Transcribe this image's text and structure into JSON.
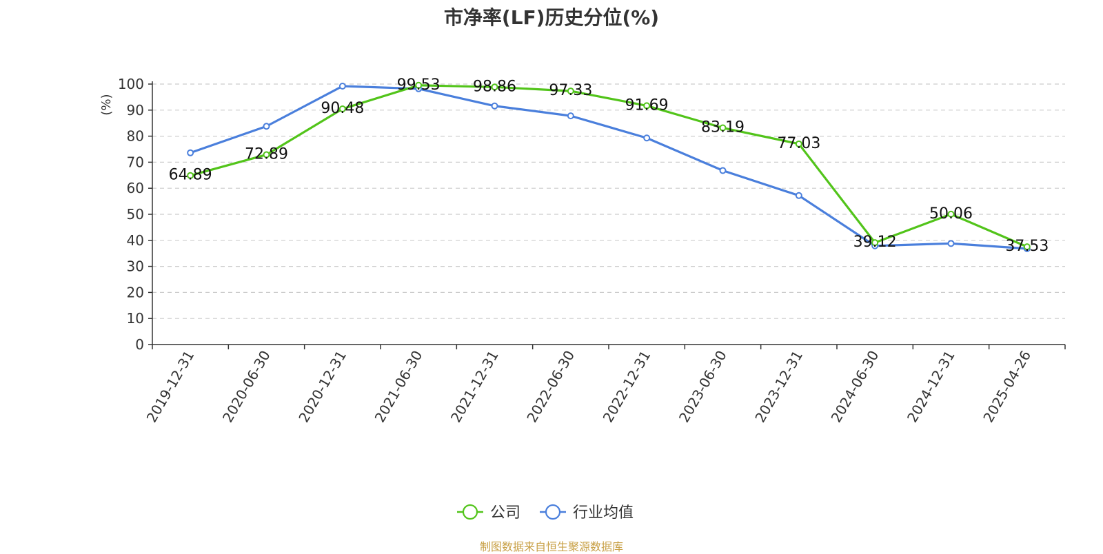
{
  "chart_data": {
    "type": "line",
    "title": "市净率(LF)历史分位(%)",
    "ylabel": "(%)",
    "xlabel": "",
    "ylim": [
      0,
      100
    ],
    "yticks": [
      0,
      10,
      20,
      30,
      40,
      50,
      60,
      70,
      80,
      90,
      100
    ],
    "grid": true,
    "legend_position": "bottom",
    "categories": [
      "2019-12-31",
      "2020-06-30",
      "2020-12-31",
      "2021-06-30",
      "2021-12-31",
      "2022-06-30",
      "2022-12-31",
      "2023-06-30",
      "2023-12-31",
      "2024-06-30",
      "2024-12-31",
      "2025-04-26"
    ],
    "series": [
      {
        "name": "公司",
        "color": "#52c41a",
        "show_labels": true,
        "values": [
          64.89,
          72.89,
          90.48,
          99.53,
          98.86,
          97.33,
          91.69,
          83.19,
          77.03,
          39.12,
          50.06,
          37.53
        ],
        "labels": [
          "64.89",
          "72.89",
          "90.48",
          "99.53",
          "98.86",
          "97.33",
          "91.69",
          "83.19",
          "77.03",
          "39.12",
          "50.06",
          "37.53"
        ]
      },
      {
        "name": "行业均值",
        "color": "#4a7fdc",
        "show_labels": false,
        "values": [
          73.6,
          83.8,
          99.2,
          98.2,
          91.6,
          87.8,
          79.3,
          66.8,
          57.2,
          37.9,
          38.8,
          36.8
        ]
      }
    ]
  },
  "source_note": "制图数据来自恒生聚源数据库",
  "colors": {
    "axis": "#333333",
    "grid": "#cccccc",
    "ylabel": "#e02020",
    "source": "#c8a046"
  }
}
